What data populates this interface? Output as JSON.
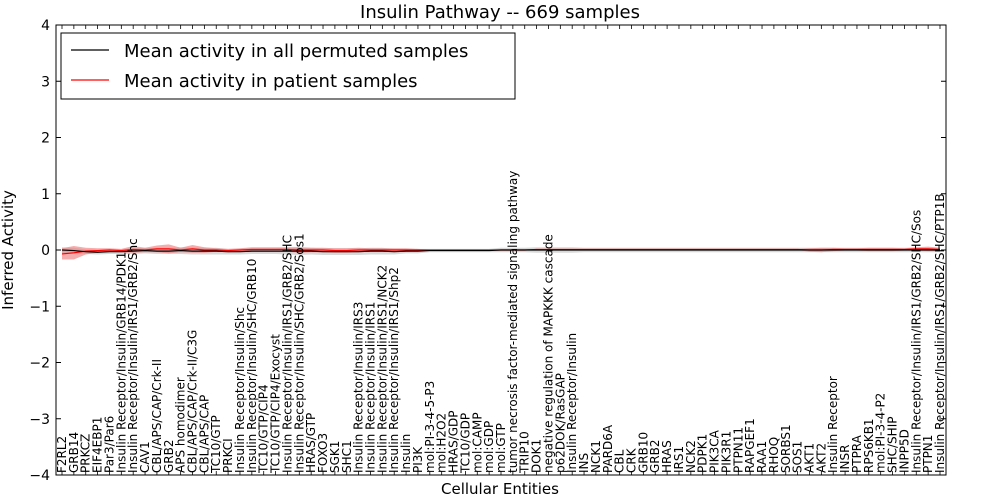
{
  "chart_data": {
    "type": "line",
    "title": "Insulin Pathway -- 669 samples",
    "xlabel": "Cellular Entities",
    "ylabel": "Inferred Activity",
    "ylim": [
      -4,
      4
    ],
    "yticks": [
      "4",
      "3",
      "2",
      "1",
      "0",
      "−1",
      "−2",
      "−3",
      "−4"
    ],
    "ytick_values": [
      4,
      3,
      2,
      1,
      0,
      -1,
      -2,
      -3,
      -4
    ],
    "legend_position": "upper-left",
    "colors": {
      "permuted": "#000000",
      "patient": "#ff0000",
      "permuted_band": "#c8c8c8",
      "patient_band": "#f08080"
    },
    "categories": [
      "F2RL2",
      "GRB14",
      "PRKCZ",
      "EIF4EBP1",
      "Par3/Par6",
      "Insulin Receptor/Insulin/GRB14/PDK1",
      "Insulin Receptor/Insulin/IRS1/GRB2/Shc",
      "CAV1",
      "CBL/APS/CAP/Crk-II",
      "GRB2",
      "APS homodimer",
      "CBL/APS/CAP/Crk-II/C3G",
      "CBL/APS/CAP",
      "TC10/GTP",
      "PRKCI",
      "Insulin Receptor/Insulin/Shc",
      "Insulin Receptor/Insulin/SHC/GRB10",
      "TC10/GTP/CIP4",
      "TC10/GTP/CIP4/Exocyst",
      "Insulin Receptor/Insulin/IRS1/GRB2/SHC",
      "Insulin Receptor/Insulin/SHC/GRB2/Sos1",
      "HRAS/GTP",
      "FOXO3",
      "SGK1",
      "SHC1",
      "Insulin Receptor/Insulin/IRS3",
      "Insulin Receptor/Insulin/IRS1",
      "Insulin Receptor/Insulin/IRS1/NCK2",
      "Insulin Receptor/Insulin/IRS1/Shp2",
      "Insulin",
      "PI3K",
      "mol:PI-3-4-5-P3",
      "mol:H2O2",
      "HRAS/GDP",
      "TC10/GDP",
      "mol:CAMP",
      "mol:GDP",
      "mol:GTP",
      "tumor necrosis factor-mediated signaling pathway",
      "TRIP10",
      "DOK1",
      "negative regulation of MAPKKK cascade",
      "p62DOK/RasGAP",
      "Insulin Receptor/Insulin",
      "INS",
      "NCK1",
      "PARD6A",
      "CBL",
      "CRK",
      "GRB10",
      "GRB2",
      "HRAS",
      "IRS1",
      "NCK2",
      "PDPK1",
      "PIK3CA",
      "PIK3R1",
      "PTPN11",
      "RAPGEF1",
      "RAA1",
      "RHOQ",
      "SORBS1",
      "SOS1",
      "AKT1",
      "AKT2",
      "Insulin Receptor",
      "INSR",
      "PTPRA",
      "RPS6KB1",
      "mol:PI-3-4-P2",
      "SHC/SHIP",
      "INPP5D",
      "Insulin Receptor/Insulin/IRS1/GRB2/SHC/Sos",
      "PTPN1",
      "Insulin Receptor/Insulin/IRS1/GRB2/SHC/PTP1B"
    ],
    "series": [
      {
        "name": "Mean activity in all permuted samples",
        "color": "#000000",
        "band_halfwidth": [
          0.05,
          0.05,
          0.04,
          0.04,
          0.04,
          0.04,
          0.05,
          0.05,
          0.05,
          0.05,
          0.06,
          0.06,
          0.06,
          0.06,
          0.05,
          0.05,
          0.05,
          0.05,
          0.05,
          0.06,
          0.07,
          0.06,
          0.06,
          0.06,
          0.06,
          0.06,
          0.06,
          0.06,
          0.05,
          0.04,
          0.04,
          0.03,
          0.03,
          0.03,
          0.03,
          0.03,
          0.03,
          0.04,
          0.04,
          0.04,
          0.05,
          0.05,
          0.05,
          0.05,
          0.04,
          0.04,
          0.04,
          0.04,
          0.04,
          0.04,
          0.04,
          0.04,
          0.04,
          0.04,
          0.04,
          0.04,
          0.04,
          0.04,
          0.04,
          0.04,
          0.04,
          0.04,
          0.04,
          0.04,
          0.04,
          0.04,
          0.04,
          0.04,
          0.04,
          0.04,
          0.04,
          0.04,
          0.04,
          0.04,
          0.04
        ],
        "values": [
          0.0,
          -0.01,
          -0.03,
          -0.04,
          -0.03,
          -0.03,
          -0.02,
          -0.01,
          -0.02,
          -0.02,
          -0.01,
          -0.02,
          -0.02,
          -0.02,
          -0.03,
          -0.03,
          -0.02,
          -0.02,
          -0.02,
          -0.02,
          -0.02,
          -0.02,
          -0.03,
          -0.03,
          -0.03,
          -0.03,
          -0.02,
          -0.02,
          -0.03,
          -0.02,
          -0.02,
          -0.01,
          -0.01,
          -0.01,
          -0.01,
          -0.01,
          -0.01,
          0.0,
          0.0,
          0.0,
          0.0,
          0.0,
          0.0,
          0.0,
          0.0,
          0.0,
          0.0,
          0.0,
          0.0,
          0.0,
          0.0,
          0.0,
          0.0,
          0.0,
          0.0,
          0.0,
          0.0,
          0.0,
          0.0,
          0.0,
          0.0,
          0.0,
          0.0,
          0.0,
          0.0,
          0.0,
          0.0,
          0.0,
          0.0,
          0.0,
          0.0,
          0.0,
          0.0,
          0.0,
          0.0
        ]
      },
      {
        "name": "Mean activity in patient samples",
        "color": "#ff0000",
        "band_halfwidth": [
          0.1,
          0.12,
          0.06,
          0.04,
          0.03,
          0.03,
          0.06,
          0.04,
          0.06,
          0.08,
          0.04,
          0.07,
          0.05,
          0.03,
          0.03,
          0.03,
          0.04,
          0.04,
          0.04,
          0.04,
          0.05,
          0.04,
          0.04,
          0.04,
          0.04,
          0.04,
          0.03,
          0.03,
          0.03,
          0.03,
          0.02,
          0.01,
          0.01,
          0.01,
          0.01,
          0.01,
          0.01,
          0.01,
          0.01,
          0.01,
          0.01,
          0.01,
          0.01,
          0.01,
          0.01,
          0.01,
          0.01,
          0.01,
          0.01,
          0.01,
          0.01,
          0.01,
          0.01,
          0.01,
          0.01,
          0.01,
          0.01,
          0.01,
          0.01,
          0.01,
          0.01,
          0.01,
          0.01,
          0.03,
          0.04,
          0.03,
          0.02,
          0.02,
          0.03,
          0.03,
          0.03,
          0.02,
          0.03,
          0.04,
          0.03
        ],
        "values": [
          -0.07,
          -0.05,
          -0.02,
          -0.01,
          0.0,
          -0.01,
          0.01,
          0.0,
          0.02,
          0.02,
          0.0,
          0.02,
          0.0,
          0.0,
          -0.01,
          0.0,
          0.01,
          0.01,
          0.01,
          0.01,
          0.0,
          0.0,
          0.0,
          -0.01,
          -0.01,
          0.0,
          0.0,
          0.0,
          0.0,
          0.0,
          0.0,
          0.0,
          0.0,
          0.0,
          0.0,
          0.0,
          0.0,
          0.0,
          0.0,
          0.0,
          0.01,
          0.01,
          0.01,
          0.01,
          0.01,
          0.01,
          0.01,
          0.01,
          0.01,
          0.01,
          0.01,
          0.01,
          0.01,
          0.01,
          0.01,
          0.01,
          0.01,
          0.01,
          0.01,
          0.01,
          0.01,
          0.01,
          0.01,
          0.0,
          0.0,
          0.01,
          0.01,
          0.01,
          0.01,
          0.01,
          0.01,
          0.01,
          0.02,
          0.02,
          0.01
        ]
      }
    ]
  }
}
